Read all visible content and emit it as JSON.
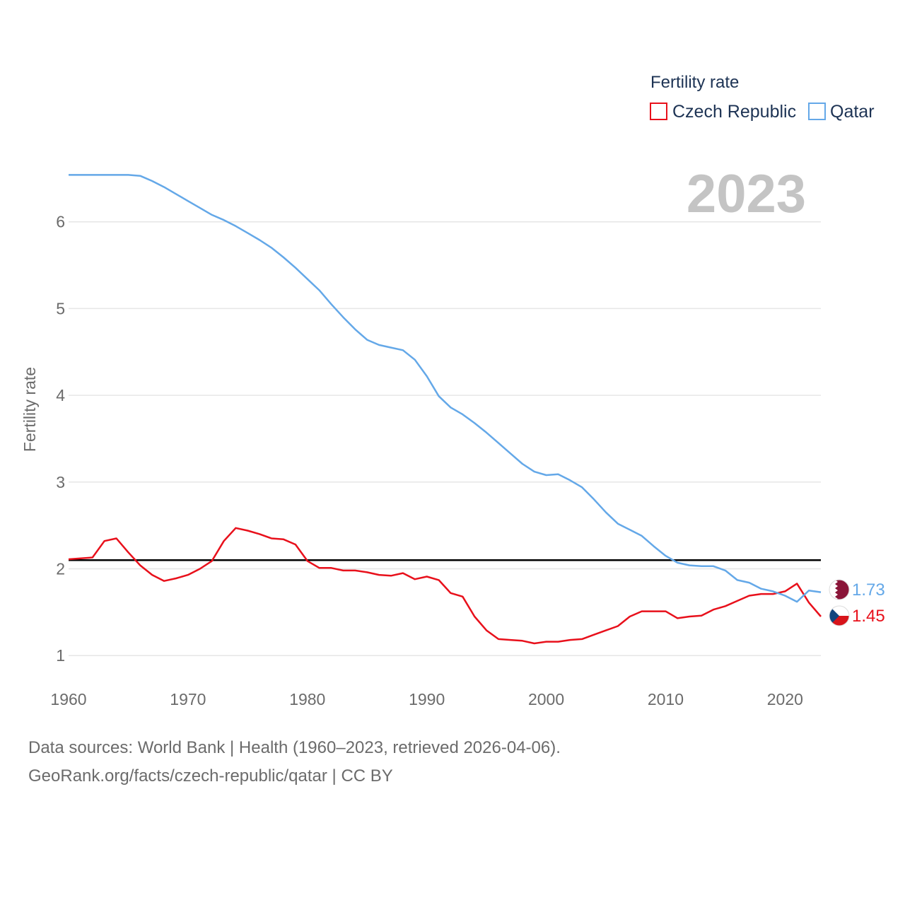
{
  "chart_data": {
    "type": "line",
    "title": "Fertility rate",
    "year_label": "2023",
    "xlabel": "",
    "ylabel": "Fertility rate",
    "xlim": [
      1960,
      2023
    ],
    "ylim": [
      0.7,
      7.0
    ],
    "x_ticks": [
      1960,
      1970,
      1980,
      1990,
      2000,
      2010,
      2020
    ],
    "y_ticks": [
      1,
      2,
      3,
      4,
      5,
      6
    ],
    "reference_line": {
      "value": 2.1,
      "color": "#000000"
    },
    "legend": {
      "position": "top-right",
      "title": "Fertility rate"
    },
    "series": [
      {
        "name": "Czech Republic",
        "color": "#e8101b",
        "end_value": "1.45",
        "flag": "czech-flag-icon",
        "x": [
          1960,
          1961,
          1962,
          1963,
          1964,
          1965,
          1966,
          1967,
          1968,
          1969,
          1970,
          1971,
          1972,
          1973,
          1974,
          1975,
          1976,
          1977,
          1978,
          1979,
          1980,
          1981,
          1982,
          1983,
          1984,
          1985,
          1986,
          1987,
          1988,
          1989,
          1990,
          1991,
          1992,
          1993,
          1994,
          1995,
          1996,
          1997,
          1998,
          1999,
          2000,
          2001,
          2002,
          2003,
          2004,
          2005,
          2006,
          2007,
          2008,
          2009,
          2010,
          2011,
          2012,
          2013,
          2014,
          2015,
          2016,
          2017,
          2018,
          2019,
          2020,
          2021,
          2022,
          2023
        ],
        "values": [
          2.11,
          2.12,
          2.13,
          2.32,
          2.35,
          2.19,
          2.04,
          1.93,
          1.86,
          1.89,
          1.93,
          2.0,
          2.09,
          2.32,
          2.47,
          2.44,
          2.4,
          2.35,
          2.34,
          2.28,
          2.09,
          2.01,
          2.01,
          1.98,
          1.98,
          1.96,
          1.93,
          1.92,
          1.95,
          1.88,
          1.91,
          1.87,
          1.72,
          1.68,
          1.45,
          1.29,
          1.19,
          1.18,
          1.17,
          1.14,
          1.16,
          1.16,
          1.18,
          1.19,
          1.24,
          1.29,
          1.34,
          1.45,
          1.51,
          1.51,
          1.51,
          1.43,
          1.45,
          1.46,
          1.53,
          1.57,
          1.63,
          1.69,
          1.71,
          1.71,
          1.74,
          1.83,
          1.61,
          1.45
        ]
      },
      {
        "name": "Qatar",
        "color": "#64a8e8",
        "end_value": "1.73",
        "flag": "qatar-flag-icon",
        "x": [
          1960,
          1961,
          1962,
          1963,
          1964,
          1965,
          1966,
          1967,
          1968,
          1969,
          1970,
          1971,
          1972,
          1973,
          1974,
          1975,
          1976,
          1977,
          1978,
          1979,
          1980,
          1981,
          1982,
          1983,
          1984,
          1985,
          1986,
          1987,
          1988,
          1989,
          1990,
          1991,
          1992,
          1993,
          1994,
          1995,
          1996,
          1997,
          1998,
          1999,
          2000,
          2001,
          2002,
          2003,
          2004,
          2005,
          2006,
          2007,
          2008,
          2009,
          2010,
          2011,
          2012,
          2013,
          2014,
          2015,
          2016,
          2017,
          2018,
          2019,
          2020,
          2021,
          2022,
          2023
        ],
        "values": [
          6.54,
          6.54,
          6.54,
          6.54,
          6.54,
          6.54,
          6.53,
          6.47,
          6.4,
          6.32,
          6.24,
          6.16,
          6.08,
          6.02,
          5.95,
          5.87,
          5.79,
          5.7,
          5.59,
          5.47,
          5.34,
          5.21,
          5.05,
          4.9,
          4.76,
          4.64,
          4.58,
          4.55,
          4.52,
          4.41,
          4.22,
          3.99,
          3.86,
          3.78,
          3.68,
          3.57,
          3.45,
          3.33,
          3.21,
          3.12,
          3.08,
          3.09,
          3.02,
          2.94,
          2.8,
          2.65,
          2.52,
          2.45,
          2.38,
          2.26,
          2.15,
          2.07,
          2.04,
          2.03,
          2.03,
          1.98,
          1.87,
          1.84,
          1.77,
          1.74,
          1.69,
          1.62,
          1.75,
          1.73
        ]
      }
    ]
  },
  "footer": {
    "line1": "Data sources: World Bank | Health (1960–2023, retrieved 2026-04-06).",
    "line2": "GeoRank.org/facts/czech-republic/qatar | CC BY"
  }
}
